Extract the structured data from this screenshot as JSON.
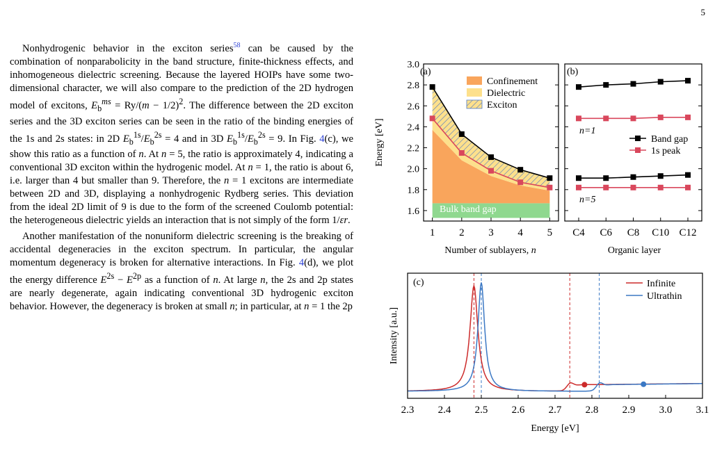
{
  "page_number": "5",
  "paragraphs": [
    "Nonhydrogenic behavior in the exciton series58 can be caused by the combination of nonparabolicity in the band structure, finite-thickness effects, and inhomogeneous dielectric screening. Because the layered HOIPs have some two-dimensional character, we will also compare to the prediction of the 2D hydrogen model of excitons, Eb^ms = Ry/(m − 1/2)². The difference between the 2D exciton series and the 3D exciton series can be seen in the ratio of the binding energies of the 1s and 2s states: in 2D Eb^1s/Eb^2s = 4 and in 3D Eb^1s/Eb^2s = 9. In Fig. 4(c), we show this ratio as a function of n. At n = 5, the ratio is approximately 4, indicating a conventional 3D exciton within the hydrogenic model. At n = 1, the ratio is about 6, i.e. larger than 4 but smaller than 9. Therefore, the n = 1 excitons are intermediate between 2D and 3D, displaying a nonhydrogenic Rydberg series. This deviation from the ideal 2D limit of 9 is due to the form of the screened Coulomb potential: the heterogeneous dielectric yields an interaction that is not simply of the form 1/εr.",
    "Another manifestation of the nonuniform dielectric screening is the breaking of accidental degeneracies in the exciton spectrum. In particular, the angular momentum degeneracy is broken for alternative interactions. In Fig. 4(d), we plot the energy difference E2s − E2p as a function of n. At large n, the 2s and 2p states are nearly degenerate, again indicating conventional 3D hydrogenic exciton behavior. However, the degeneracy is broken at small n; in particular, at n = 1 the 2p"
  ],
  "colors": {
    "confinement": "#f9a55c",
    "dielectric": "#fde08c",
    "exciton_hatch": "#4e79c4",
    "bulk": "#8fd88f",
    "band_gap": "#000000",
    "peak_1s": "#d9475c",
    "infinite": "#cc2a2a",
    "ultrathin": "#3b78c4"
  },
  "chart_data": [
    {
      "panel": "(a)",
      "type": "area",
      "xlabel": "Number of sublayers, n",
      "ylabel": "Energy [eV]",
      "x": [
        1,
        2,
        3,
        4,
        5
      ],
      "xlim": [
        0.7,
        5.3
      ],
      "ylim": [
        1.5,
        3.0
      ],
      "yticks": [
        "1.6",
        "1.8",
        "2.0",
        "2.2",
        "2.4",
        "2.6",
        "2.8",
        "3.0"
      ],
      "xticks": [
        "1",
        "2",
        "3",
        "4",
        "5"
      ],
      "series": [
        {
          "name": "Band gap",
          "values": [
            2.78,
            2.33,
            2.11,
            1.99,
            1.91
          ]
        },
        {
          "name": "1s peak",
          "values": [
            2.48,
            2.15,
            1.98,
            1.87,
            1.82
          ]
        },
        {
          "name": "Confinement",
          "values": [
            2.37,
            2.08,
            1.93,
            1.84,
            1.79
          ]
        }
      ],
      "bulk_band_gap": 1.67,
      "areas": [
        "Confinement",
        "Dielectric",
        "Exciton"
      ],
      "bulk_label": "Bulk band gap",
      "legend_position": "top-right"
    },
    {
      "panel": "(b)",
      "type": "line",
      "xlabel": "Organic layer",
      "categories": [
        "C4",
        "C6",
        "C8",
        "C10",
        "C12"
      ],
      "ylim": [
        1.5,
        3.0
      ],
      "series": [
        {
          "name": "Band gap",
          "group": "n=1",
          "values": [
            2.78,
            2.8,
            2.81,
            2.83,
            2.84
          ]
        },
        {
          "name": "1s peak",
          "group": "n=1",
          "values": [
            2.48,
            2.48,
            2.48,
            2.49,
            2.49
          ]
        },
        {
          "name": "Band gap",
          "group": "n=5",
          "values": [
            1.91,
            1.91,
            1.92,
            1.93,
            1.94
          ]
        },
        {
          "name": "1s peak",
          "group": "n=5",
          "values": [
            1.82,
            1.82,
            1.82,
            1.82,
            1.82
          ]
        }
      ],
      "annotations": [
        "n=1",
        "n=5"
      ],
      "legend": [
        "Band gap",
        "1s peak"
      ],
      "legend_position": "middle-right"
    },
    {
      "panel": "(c)",
      "type": "line",
      "xlabel": "Energy [eV]",
      "ylabel": "Intensity [a.u.]",
      "xlim": [
        2.3,
        3.1
      ],
      "xticks": [
        "2.3",
        "2.4",
        "2.5",
        "2.6",
        "2.7",
        "2.8",
        "2.9",
        "3.0",
        "3.1"
      ],
      "series": [
        {
          "name": "Infinite",
          "peak": 2.48,
          "band_gap": 2.74,
          "marker": 2.78
        },
        {
          "name": "Ultrathin",
          "peak": 2.5,
          "band_gap": 2.82,
          "marker": 2.94
        }
      ],
      "legend_position": "top-right"
    }
  ]
}
